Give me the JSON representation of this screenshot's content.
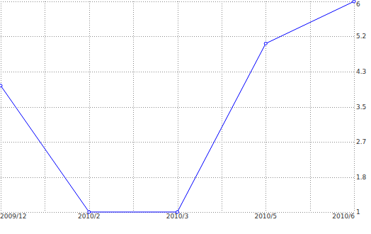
{
  "chart_data": {
    "type": "line",
    "categories": [
      "2009/12",
      "2010/2",
      "2010/3",
      "2010/5",
      "2010/6"
    ],
    "values": [
      4,
      1,
      1,
      5,
      6
    ],
    "color": "#0000ff",
    "marker": "circle",
    "ylim": [
      1,
      6
    ],
    "yticks": [
      1,
      {
        "value": 1.8333,
        "label": "1.8"
      },
      {
        "value": 2.6667,
        "label": "2.7"
      },
      3.5,
      {
        "value": 4.3333,
        "label": "4.3"
      },
      {
        "value": 5.1667,
        "label": "5.2"
      },
      6
    ],
    "grid": true
  }
}
